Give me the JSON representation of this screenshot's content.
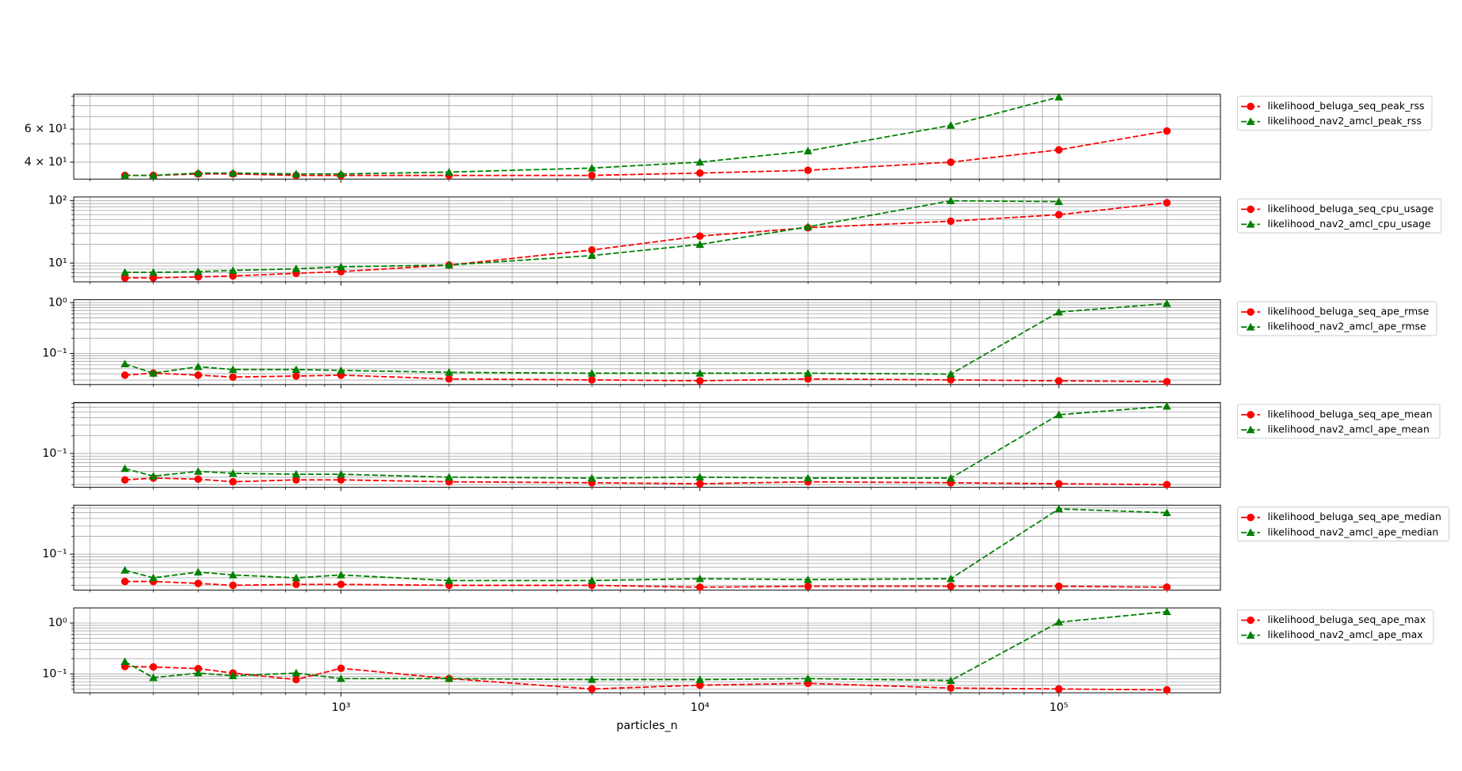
{
  "chart_data": {
    "type": "line",
    "log_x": true,
    "log_y": true,
    "grid": true,
    "legend": "outside right",
    "xlabel": "particles_n",
    "x": [
      250,
      300,
      400,
      500,
      750,
      1000,
      2000,
      5000,
      10000,
      20000,
      50000,
      100000,
      200000
    ],
    "xlim": [
      180,
      282000
    ],
    "xticks": [
      {
        "value": 1000,
        "label": "10³"
      },
      {
        "value": 10000,
        "label": "10⁴"
      },
      {
        "value": 100000,
        "label": "10⁵"
      }
    ],
    "xminorticks": [
      200,
      300,
      400,
      500,
      600,
      700,
      800,
      900,
      2000,
      3000,
      4000,
      5000,
      6000,
      7000,
      8000,
      9000,
      20000,
      30000,
      40000,
      50000,
      60000,
      70000,
      80000,
      90000,
      200000
    ],
    "panels": [
      {
        "ylim": [
          32.5,
          92
        ],
        "yticks": [
          {
            "value": 40,
            "label": "4 × 10¹"
          },
          {
            "value": 60,
            "label": "6 × 10¹"
          }
        ],
        "yminorticks": [
          50,
          70,
          80,
          90
        ],
        "series": [
          {
            "name": "likelihood_beluga_seq_peak_rss",
            "color": "#ff0000",
            "marker": "circle",
            "values": [
              34,
              34,
              34.6,
              34.6,
              34,
              34,
              34,
              34,
              35,
              36.2,
              40,
              46.5,
              58.6
            ]
          },
          {
            "name": "likelihood_nav2_amcl_peak_rss",
            "color": "#008000",
            "marker": "triangle",
            "values": [
              34,
              34,
              35,
              35,
              34.6,
              34.6,
              35.4,
              37.2,
              40,
              45.9,
              62.8,
              88.9,
              null
            ]
          }
        ]
      },
      {
        "ylim": [
          5,
          115
        ],
        "yticks": [
          {
            "value": 10,
            "label": "10¹"
          },
          {
            "value": 100,
            "label": "10²"
          }
        ],
        "yminorticks": [
          6,
          7,
          8,
          9,
          20,
          30,
          40,
          50,
          60,
          70,
          80,
          90
        ],
        "series": [
          {
            "name": "likelihood_beluga_seq_cpu_usage",
            "color": "#ff0000",
            "marker": "circle",
            "values": [
              5.77,
              5.8,
              6.0,
              6.2,
              6.85,
              7.3,
              9.3,
              16.2,
              27.1,
              36.9,
              47,
              59.7,
              93
            ]
          },
          {
            "name": "likelihood_nav2_amcl_cpu_usage",
            "color": "#008000",
            "marker": "triangle",
            "values": [
              7.1,
              7.1,
              7.3,
              7.6,
              8.1,
              8.7,
              9.3,
              13.2,
              19.9,
              38.2,
              100,
              97,
              null
            ]
          }
        ]
      },
      {
        "ylim": [
          0.0245,
          1.14
        ],
        "yticks": [
          {
            "value": 0.1,
            "label": "10⁻¹"
          },
          {
            "value": 1,
            "label": "10⁰"
          }
        ],
        "yminorticks": [
          0.03,
          0.04,
          0.05,
          0.06,
          0.07,
          0.08,
          0.09,
          0.2,
          0.3,
          0.4,
          0.5,
          0.6,
          0.7,
          0.8,
          0.9
        ],
        "series": [
          {
            "name": "likelihood_beluga_seq_ape_rmse",
            "color": "#ff0000",
            "marker": "circle",
            "values": [
              0.0375,
              0.041,
              0.0375,
              0.0344,
              0.036,
              0.0375,
              0.0316,
              0.0303,
              0.029,
              0.0316,
              0.0303,
              0.029,
              0.0278
            ]
          },
          {
            "name": "likelihood_nav2_amcl_ape_rmse",
            "color": "#008000",
            "marker": "triangle",
            "values": [
              0.0625,
              0.041,
              0.055,
              0.0484,
              0.0484,
              0.0464,
              0.0426,
              0.041,
              0.041,
              0.041,
              0.0393,
              0.653,
              0.958
            ]
          }
        ]
      },
      {
        "ylim": [
          0.027,
          0.72
        ],
        "yticks": [
          {
            "value": 0.1,
            "label": "10⁻¹"
          }
        ],
        "yminorticks": [
          0.03,
          0.04,
          0.05,
          0.06,
          0.07,
          0.08,
          0.09,
          0.2,
          0.3,
          0.4,
          0.5,
          0.6,
          0.7
        ],
        "series": [
          {
            "name": "likelihood_beluga_seq_ape_mean",
            "color": "#ff0000",
            "marker": "circle",
            "values": [
              0.036,
              0.0386,
              0.037,
              0.0334,
              0.036,
              0.036,
              0.0334,
              0.0322,
              0.031,
              0.0334,
              0.0322,
              0.031,
              0.0299
            ]
          },
          {
            "name": "likelihood_nav2_amcl_ape_mean",
            "color": "#008000",
            "marker": "triangle",
            "values": [
              0.0557,
              0.0416,
              0.05,
              0.0464,
              0.0447,
              0.0447,
              0.04,
              0.0386,
              0.04,
              0.0386,
              0.0386,
              0.448,
              0.622
            ]
          }
        ]
      },
      {
        "ylim": [
          0.0249,
          0.668
        ],
        "yticks": [
          {
            "value": 0.1,
            "label": "10⁻¹"
          }
        ],
        "yminorticks": [
          0.03,
          0.04,
          0.05,
          0.06,
          0.07,
          0.08,
          0.09,
          0.2,
          0.3,
          0.4,
          0.5,
          0.6
        ],
        "series": [
          {
            "name": "likelihood_beluga_seq_ape_median",
            "color": "#ff0000",
            "marker": "circle",
            "values": [
              0.0347,
              0.0347,
              0.0322,
              0.0299,
              0.031,
              0.031,
              0.0299,
              0.0299,
              0.0278,
              0.0288,
              0.0288,
              0.0288,
              0.0278
            ]
          },
          {
            "name": "likelihood_nav2_amcl_ape_median",
            "color": "#008000",
            "marker": "triangle",
            "values": [
              0.0537,
              0.04,
              0.0499,
              0.0447,
              0.04,
              0.0447,
              0.036,
              0.036,
              0.0386,
              0.0373,
              0.0386,
              0.578,
              0.499
            ]
          }
        ]
      },
      {
        "ylim": [
          0.0426,
          1.98
        ],
        "yticks": [
          {
            "value": 0.1,
            "label": "10⁻¹"
          },
          {
            "value": 1,
            "label": "10⁰"
          }
        ],
        "yminorticks": [
          0.05,
          0.06,
          0.07,
          0.08,
          0.09,
          0.2,
          0.3,
          0.4,
          0.5,
          0.6,
          0.7,
          0.8,
          0.9
        ],
        "series": [
          {
            "name": "likelihood_beluga_seq_ape_max",
            "color": "#ff0000",
            "marker": "circle",
            "values": [
              0.14,
              0.137,
              0.127,
              0.104,
              0.0774,
              0.129,
              0.081,
              0.0506,
              0.06,
              0.0653,
              0.0528,
              0.0506,
              0.0485
            ]
          },
          {
            "name": "likelihood_nav2_amcl_ape_max",
            "color": "#008000",
            "marker": "triangle",
            "values": [
              0.174,
              0.0843,
              0.104,
              0.0918,
              0.104,
              0.081,
              0.081,
              0.0774,
              0.0774,
              0.081,
              0.0742,
              1.04,
              1.67
            ]
          }
        ]
      }
    ]
  }
}
